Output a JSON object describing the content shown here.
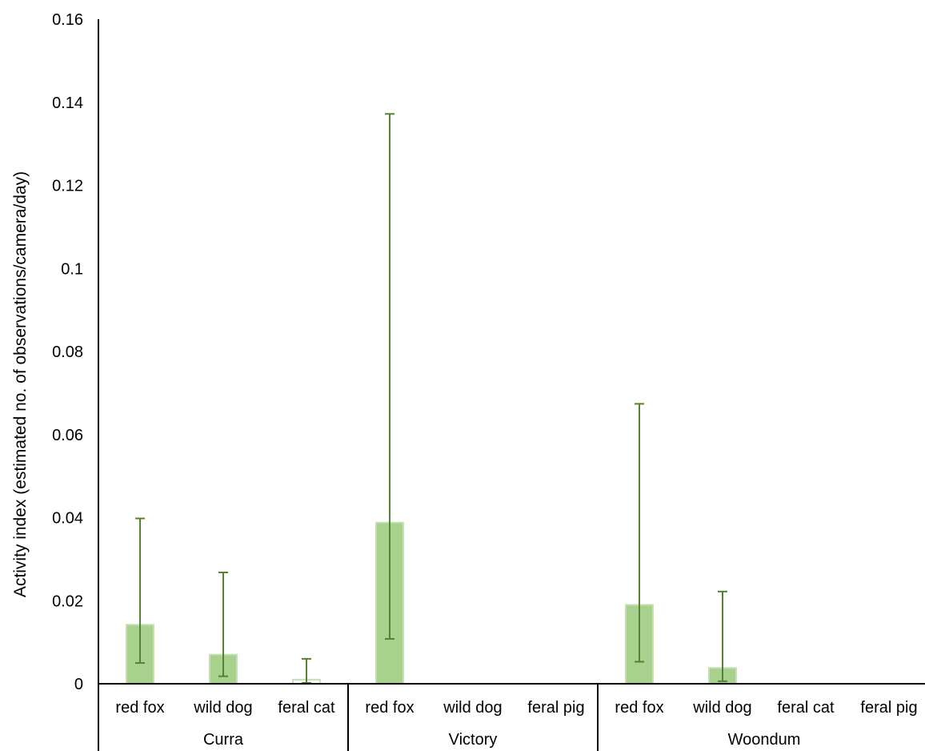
{
  "chart_data": {
    "type": "bar",
    "title": "",
    "xlabel": "",
    "ylabel": "Activity index (estimated no. of observations/camera/day)",
    "ylim": [
      0,
      0.16
    ],
    "yticks": [
      "0",
      "0.02",
      "0.04",
      "0.06",
      "0.08",
      "0.1",
      "0.12",
      "0.14",
      "0.16"
    ],
    "ytick_values": [
      0,
      0.02,
      0.04,
      0.06,
      0.08,
      0.1,
      0.12,
      0.14,
      0.16
    ],
    "grid": false,
    "legend": "none",
    "groups": [
      {
        "name": "Curra",
        "bars": [
          {
            "category": "red fox",
            "value": 0.0142,
            "err_low": 0.005,
            "err_high": 0.0398
          },
          {
            "category": "wild dog",
            "value": 0.007,
            "err_low": 0.0018,
            "err_high": 0.0268
          },
          {
            "category": "feral cat",
            "value": 0.001,
            "err_low": 0.0002,
            "err_high": 0.006
          }
        ]
      },
      {
        "name": "Victory",
        "bars": [
          {
            "category": "red fox",
            "value": 0.0388,
            "err_low": 0.0108,
            "err_high": 0.1372
          },
          {
            "category": "wild dog",
            "value": 0
          },
          {
            "category": "feral pig",
            "value": 0
          }
        ]
      },
      {
        "name": "Woondum",
        "bars": [
          {
            "category": "red fox",
            "value": 0.019,
            "err_low": 0.0053,
            "err_high": 0.0674
          },
          {
            "category": "wild dog",
            "value": 0.0038,
            "err_low": 0.0006,
            "err_high": 0.0222
          },
          {
            "category": "feral cat",
            "value": 0
          },
          {
            "category": "feral pig",
            "value": 0
          }
        ]
      }
    ],
    "colors": {
      "bar_fill": "#a9d18e",
      "bar_stroke": "#c5e0b4",
      "error_bar": "#548235",
      "axis": "#000000"
    }
  }
}
